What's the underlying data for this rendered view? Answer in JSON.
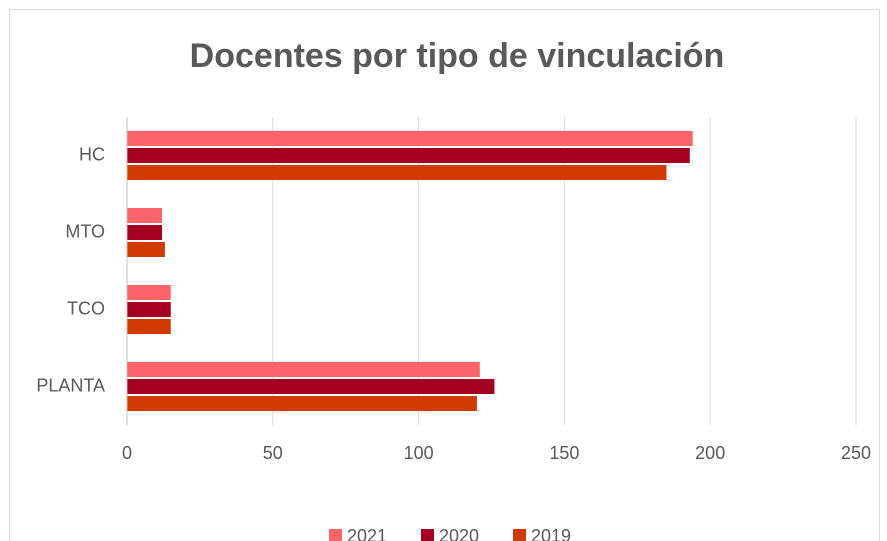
{
  "chart_data": {
    "type": "barh",
    "title": "Docentes por tipo de vinculación",
    "categories": [
      "HC",
      "MTO",
      "TCO",
      "PLANTA"
    ],
    "series": [
      {
        "name": "2021",
        "color": "#fb6468",
        "values": [
          194,
          12,
          15,
          121
        ]
      },
      {
        "name": "2020",
        "color": "#a50021",
        "values": [
          193,
          12,
          15,
          126
        ]
      },
      {
        "name": "2019",
        "color": "#d13a00",
        "values": [
          185,
          13,
          15,
          120
        ]
      }
    ],
    "xlim": [
      0,
      250
    ],
    "xticks": [
      0,
      50,
      100,
      150,
      200,
      250
    ],
    "grid": true,
    "legend": "bottom"
  }
}
